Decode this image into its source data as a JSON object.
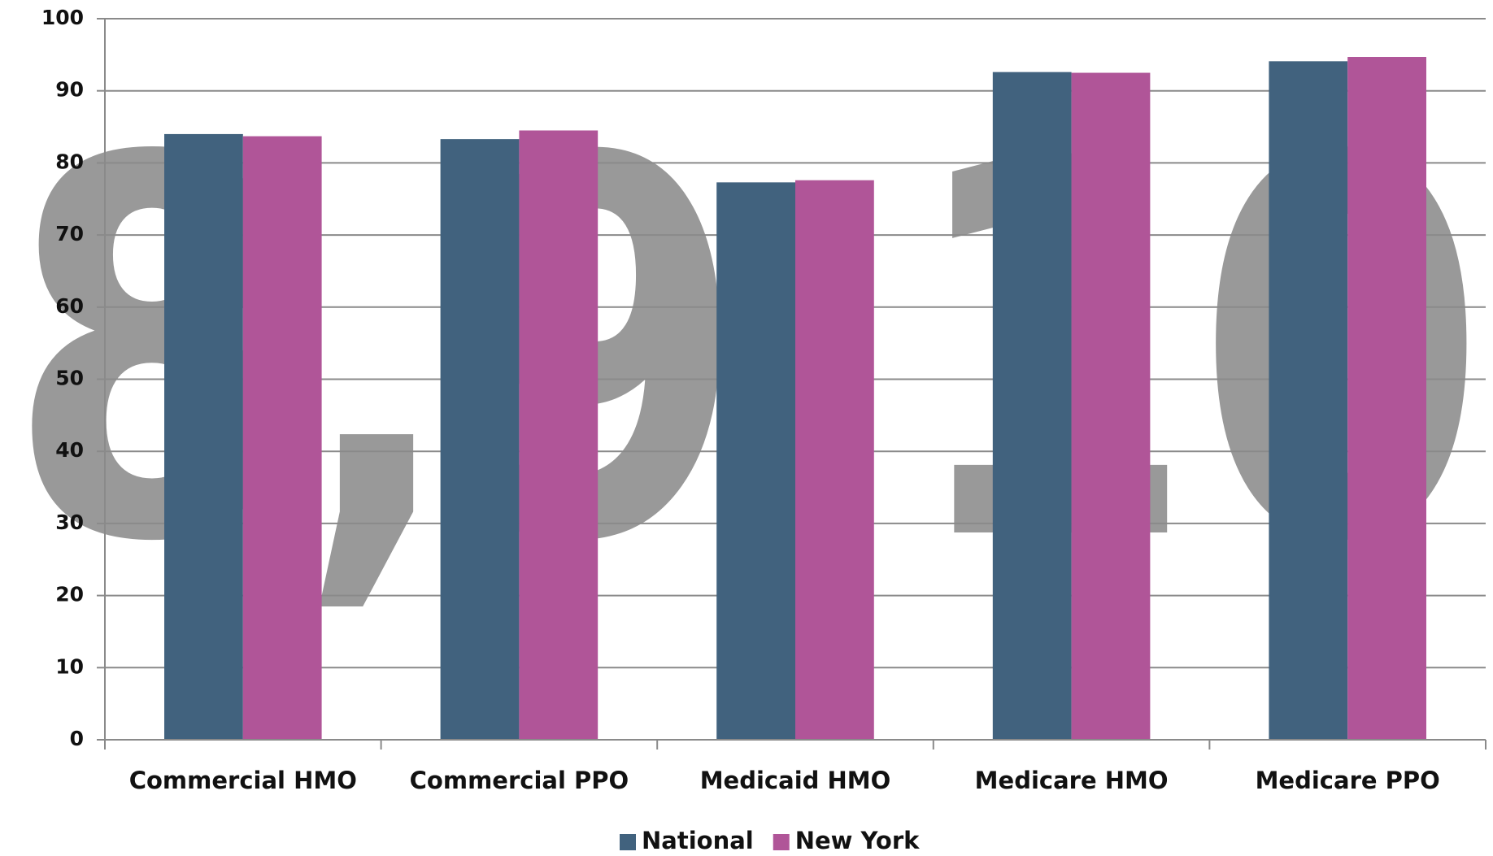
{
  "chart_data": {
    "type": "bar",
    "watermark": "8,9,10",
    "categories": [
      "Commercial HMO",
      "Commercial PPO",
      "Medicaid HMO",
      "Medicare HMO",
      "Medicare PPO"
    ],
    "series": [
      {
        "name": "National",
        "color": "#41627e",
        "values": [
          84,
          83.3,
          77.3,
          92.6,
          94.1
        ]
      },
      {
        "name": "New York",
        "color": "#b05598",
        "values": [
          83.7,
          84.5,
          77.6,
          92.5,
          94.7
        ]
      }
    ],
    "ylim": [
      0,
      100
    ],
    "yticks": [
      0,
      10,
      20,
      30,
      40,
      50,
      60,
      70,
      80,
      90,
      100
    ],
    "grid": true,
    "legend": "bottom"
  }
}
